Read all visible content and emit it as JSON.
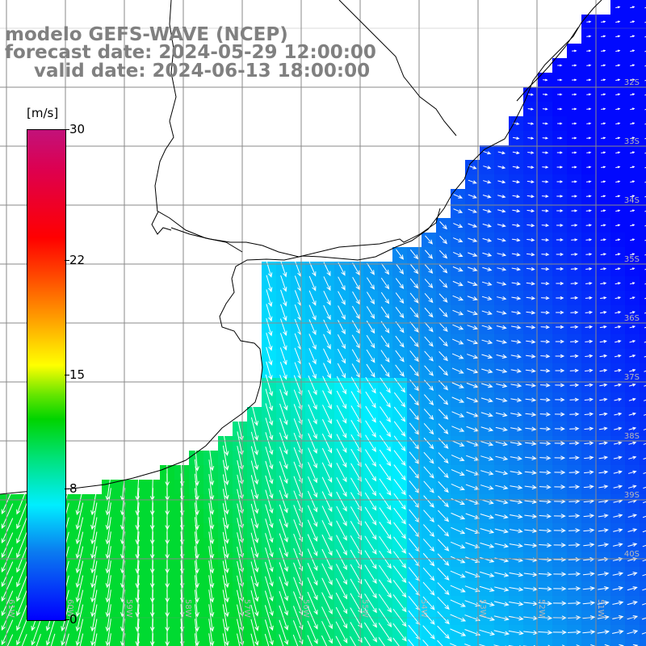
{
  "header": {
    "line1": "modelo GEFS-WAVE (NCEP)",
    "line2": "forecast date: 2024-05-29 12:00:00",
    "line3": "valid date: 2024-06-13 18:00:00"
  },
  "colorbar": {
    "unit": "[m/s]",
    "ticks": [
      "30",
      "22",
      "15",
      "8",
      "0"
    ],
    "tick_values": [
      30,
      22,
      15,
      8,
      0
    ],
    "min": 0,
    "max": 30,
    "colors": [
      "#0000ff",
      "#0a7cf0",
      "#00eeff",
      "#00e27a",
      "#00d400",
      "#ffff00",
      "#ff9900",
      "#ff0000",
      "#c2127a"
    ]
  },
  "map": {
    "lat_labels": [
      "32S",
      "33S",
      "34S",
      "35S",
      "36S",
      "37S",
      "38S",
      "39S",
      "40S"
    ],
    "lon_labels": [
      "61W",
      "60W",
      "59W",
      "58W",
      "57W",
      "56W",
      "55W",
      "54W",
      "53W",
      "52W",
      "51W"
    ],
    "arrow_color": "#ffffff",
    "coast_color": "#000000",
    "grid_color": "#8a8a8a"
  }
}
